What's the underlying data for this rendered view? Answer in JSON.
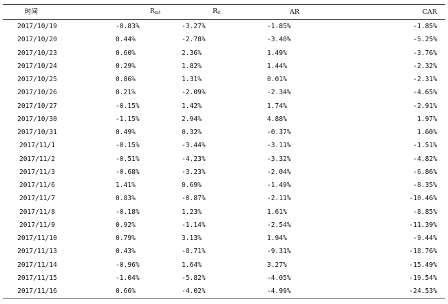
{
  "table": {
    "headers": {
      "time": "时间",
      "rmt_main": "R",
      "rmt_sub": "mt",
      "rit_main": "R",
      "rit_sub": "it",
      "ar": "AR",
      "car": "CAR"
    },
    "rows": [
      {
        "date": "2017/10/19",
        "rmt": "-0.83%",
        "rit": "-3.27%",
        "ar": "-1.85%",
        "car": "-1.85%"
      },
      {
        "date": "2017/10/20",
        "rmt": "0.44%",
        "rit": "-2.78%",
        "ar": "-3.40%",
        "car": "-5.25%"
      },
      {
        "date": "2017/10/23",
        "rmt": "0.60%",
        "rit": "2.36%",
        "ar": "1.49%",
        "car": "-3.76%"
      },
      {
        "date": "2017/10/24",
        "rmt": "0.29%",
        "rit": "1.82%",
        "ar": "1.44%",
        "car": "-2.32%"
      },
      {
        "date": "2017/10/25",
        "rmt": "0.86%",
        "rit": "1.31%",
        "ar": "0.01%",
        "car": "-2.31%"
      },
      {
        "date": "2017/10/26",
        "rmt": "0.21%",
        "rit": "-2.09%",
        "ar": "-2.34%",
        "car": "-4.65%"
      },
      {
        "date": "2017/10/27",
        "rmt": "-0.15%",
        "rit": "1.42%",
        "ar": "1.74%",
        "car": "-2.91%"
      },
      {
        "date": "2017/10/30",
        "rmt": "-1.15%",
        "rit": "2.94%",
        "ar": "4.88%",
        "car": "1.97%"
      },
      {
        "date": "2017/10/31",
        "rmt": "0.49%",
        "rit": "0.32%",
        "ar": "-0.37%",
        "car": "1.60%"
      },
      {
        "date": "2017/11/1",
        "rmt": "-0.15%",
        "rit": "-3.44%",
        "ar": "-3.11%",
        "car": "-1.51%"
      },
      {
        "date": "2017/11/2",
        "rmt": "-0.51%",
        "rit": "-4.23%",
        "ar": "-3.32%",
        "car": "-4.82%"
      },
      {
        "date": "2017/11/3",
        "rmt": "-0.68%",
        "rit": "-3.23%",
        "ar": "-2.04%",
        "car": "-6.86%"
      },
      {
        "date": "2017/11/6",
        "rmt": "1.41%",
        "rit": "0.69%",
        "ar": "-1.49%",
        "car": "-8.35%"
      },
      {
        "date": "2017/11/7",
        "rmt": "0.83%",
        "rit": "-0.87%",
        "ar": "-2.11%",
        "car": "-10.46%"
      },
      {
        "date": "2017/11/8",
        "rmt": "-0.18%",
        "rit": "1.23%",
        "ar": "1.61%",
        "car": "-8.85%"
      },
      {
        "date": "2017/11/9",
        "rmt": "0.92%",
        "rit": "-1.14%",
        "ar": "-2.54%",
        "car": "-11.39%"
      },
      {
        "date": "2017/11/10",
        "rmt": "0.79%",
        "rit": "3.13%",
        "ar": "1.94%",
        "car": "-9.44%"
      },
      {
        "date": "2017/11/13",
        "rmt": "0.43%",
        "rit": "-8.71%",
        "ar": "-9.31%",
        "car": "-18.76%"
      },
      {
        "date": "2017/11/14",
        "rmt": "-0.96%",
        "rit": "1.64%",
        "ar": "3.27%",
        "car": "-15.49%"
      },
      {
        "date": "2017/11/15",
        "rmt": "-1.04%",
        "rit": "-5.82%",
        "ar": "-4.05%",
        "car": "-19.54%"
      },
      {
        "date": "2017/11/16",
        "rmt": "0.66%",
        "rit": "-4.02%",
        "ar": "-4.99%",
        "car": "-24.53%"
      }
    ]
  }
}
